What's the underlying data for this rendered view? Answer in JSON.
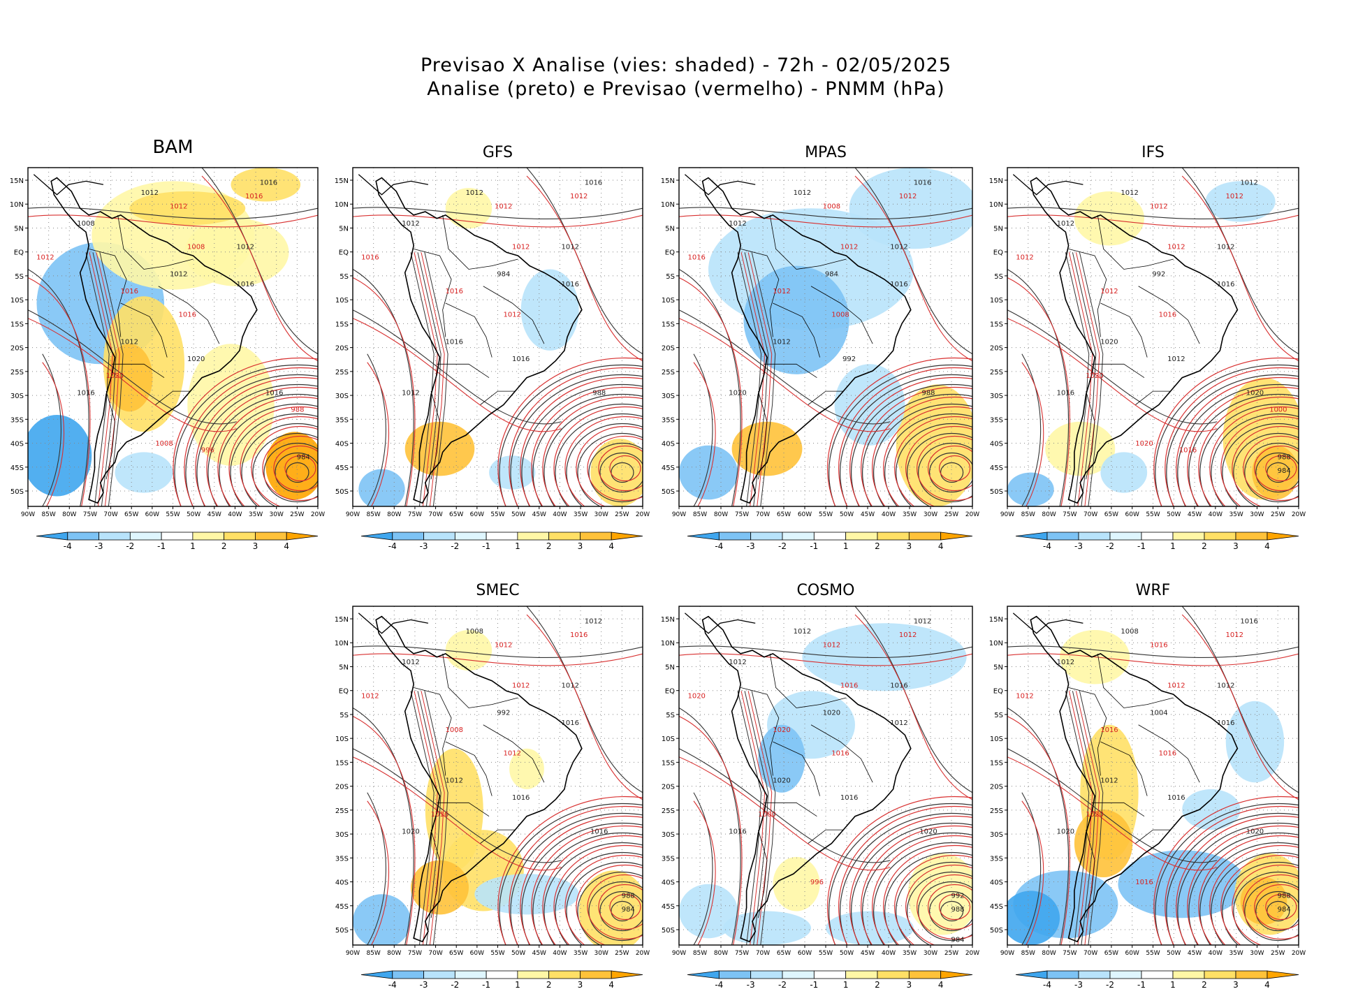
{
  "header": {
    "line1": "Previsao X Analise (vies: shaded) - 72h - 02/05/2025",
    "line2": "Analise (preto) e Previsao (vermelho) - PNMM (hPa)"
  },
  "axes": {
    "lat_labels": [
      "15N",
      "10N",
      "5N",
      "EQ",
      "5S",
      "10S",
      "15S",
      "20S",
      "25S",
      "30S",
      "35S",
      "40S",
      "45S",
      "50S"
    ],
    "lon_labels": [
      "90W",
      "85W",
      "80W",
      "75W",
      "70W",
      "65W",
      "60W",
      "55W",
      "50W",
      "45W",
      "40W",
      "35W",
      "30W",
      "25W",
      "20W"
    ]
  },
  "colorbar": {
    "labels": [
      "-4",
      "-3",
      "-2",
      "-1",
      "1",
      "2",
      "3",
      "4"
    ],
    "colors": [
      "#3fa6ee",
      "#7dc3f5",
      "#b8e3fb",
      "#dff6fe",
      "#ffffff",
      "#fff7a6",
      "#ffe066",
      "#ffc23a",
      "#ffa500"
    ]
  },
  "panels": [
    {
      "id": "bam",
      "title": "BAM",
      "big": true,
      "analysis_labels": [
        "1016",
        "1012",
        "1008",
        "1012",
        "1016",
        "1012",
        "1016",
        "1020",
        "1016",
        "1012",
        "984"
      ],
      "forecast_labels": [
        "1016",
        "1012",
        "1008",
        "1012",
        "1016",
        "1016",
        "1020",
        "1008",
        "996",
        "988"
      ]
    },
    {
      "id": "gfs",
      "title": "GFS",
      "big": false,
      "analysis_labels": [
        "1016",
        "1012",
        "1012",
        "1012",
        "1016",
        "1016",
        "1012",
        "1016",
        "988",
        "984"
      ],
      "forecast_labels": [
        "1012",
        "1012",
        "1012",
        "1016",
        "1012",
        "1016"
      ]
    },
    {
      "id": "mpas",
      "title": "MPAS",
      "big": false,
      "analysis_labels": [
        "1016",
        "1012",
        "1012",
        "1012",
        "1016",
        "1012",
        "1020",
        "992",
        "988",
        "984"
      ],
      "forecast_labels": [
        "1012",
        "1008",
        "1012",
        "1016",
        "1008",
        "1012"
      ]
    },
    {
      "id": "ifs",
      "title": "IFS",
      "big": false,
      "analysis_labels": [
        "1012",
        "1012",
        "1012",
        "1012",
        "1016",
        "1020",
        "1016",
        "1012",
        "1020",
        "992",
        "988",
        "984"
      ],
      "forecast_labels": [
        "1012",
        "1012",
        "1012",
        "1012",
        "1016",
        "1012",
        "1020",
        "1020",
        "1016",
        "1000"
      ]
    },
    {
      "id": "smec",
      "title": "SMEC",
      "big": false,
      "analysis_labels": [
        "1012",
        "1008",
        "1012",
        "1012",
        "1016",
        "1012",
        "1020",
        "1016",
        "1016",
        "992",
        "988",
        "984"
      ],
      "forecast_labels": [
        "1016",
        "1012",
        "1012",
        "1012",
        "1012",
        "1008",
        "1016"
      ]
    },
    {
      "id": "cosmo",
      "title": "COSMO",
      "big": false,
      "analysis_labels": [
        "1012",
        "1012",
        "1012",
        "1016",
        "1012",
        "1020",
        "1016",
        "1016",
        "1020",
        "1020",
        "992",
        "988",
        "984"
      ],
      "forecast_labels": [
        "1012",
        "1012",
        "1016",
        "1020",
        "1016",
        "1020",
        "1000",
        "996"
      ]
    },
    {
      "id": "wrf",
      "title": "WRF",
      "big": false,
      "analysis_labels": [
        "1016",
        "1008",
        "1012",
        "1012",
        "1016",
        "1012",
        "1020",
        "1016",
        "1020",
        "1004",
        "988",
        "984"
      ],
      "forecast_labels": [
        "1012",
        "1016",
        "1012",
        "1012",
        "1016",
        "1016",
        "1020",
        "1016"
      ]
    }
  ]
}
